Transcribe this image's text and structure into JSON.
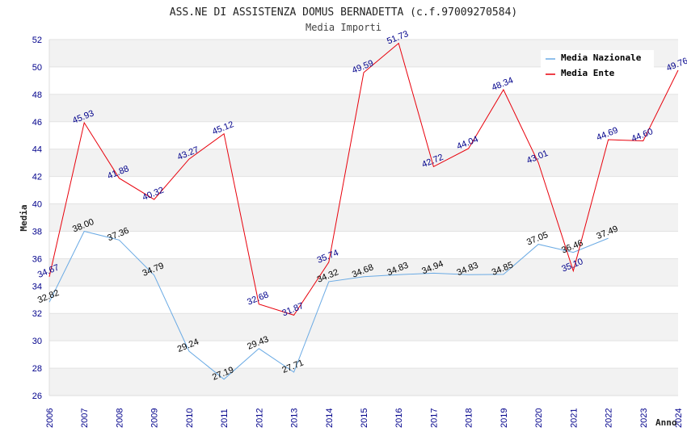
{
  "chart_data": {
    "type": "line",
    "title": "ASS.NE DI ASSISTENZA DOMUS BERNADETTA (c.f.97009270584)",
    "subtitle": "Media Importi",
    "xlabel": "Anno",
    "ylabel": "Media",
    "x": [
      "2006",
      "2007",
      "2008",
      "2009",
      "2010",
      "2011",
      "2012",
      "2013",
      "2014",
      "2015",
      "2016",
      "2017",
      "2018",
      "2019",
      "2020",
      "2021",
      "2022",
      "2023",
      "2024"
    ],
    "ylim": [
      26,
      52
    ],
    "yticks": [
      "26",
      "28",
      "30",
      "32",
      "34",
      "36",
      "38",
      "40",
      "42",
      "44",
      "46",
      "48",
      "50",
      "52"
    ],
    "grid": "horizontal bands",
    "legend_position": "top-right",
    "series": [
      {
        "name": "Media Nazionale",
        "color": "#6aaae4",
        "values": [
          32.82,
          38.0,
          37.36,
          34.79,
          29.24,
          27.19,
          29.43,
          27.71,
          34.32,
          34.68,
          34.83,
          34.94,
          34.83,
          34.85,
          37.05,
          36.46,
          37.49,
          null,
          null
        ],
        "labels": [
          "32.82",
          "38.00",
          "37.36",
          "34.79",
          "29.24",
          "27.19",
          "29.43",
          "27.71",
          "34.32",
          "34.68",
          "34.83",
          "34.94",
          "34.83",
          "34.85",
          "37.05",
          "36.46",
          "37.49",
          "",
          ""
        ]
      },
      {
        "name": "Media Ente",
        "color": "#e8000b",
        "values": [
          34.67,
          45.93,
          41.88,
          40.32,
          43.27,
          45.12,
          32.68,
          31.87,
          35.74,
          49.59,
          51.73,
          42.72,
          44.04,
          48.34,
          43.01,
          35.1,
          44.69,
          44.6,
          49.76
        ],
        "labels": [
          "34.67",
          "45.93",
          "41.88",
          "40.32",
          "43.27",
          "45.12",
          "32.68",
          "31.87",
          "35.74",
          "49.59",
          "51.73",
          "42.72",
          "44.04",
          "48.34",
          "43.01",
          "35.10",
          "44.69",
          "44.60",
          "49.76"
        ]
      }
    ]
  }
}
